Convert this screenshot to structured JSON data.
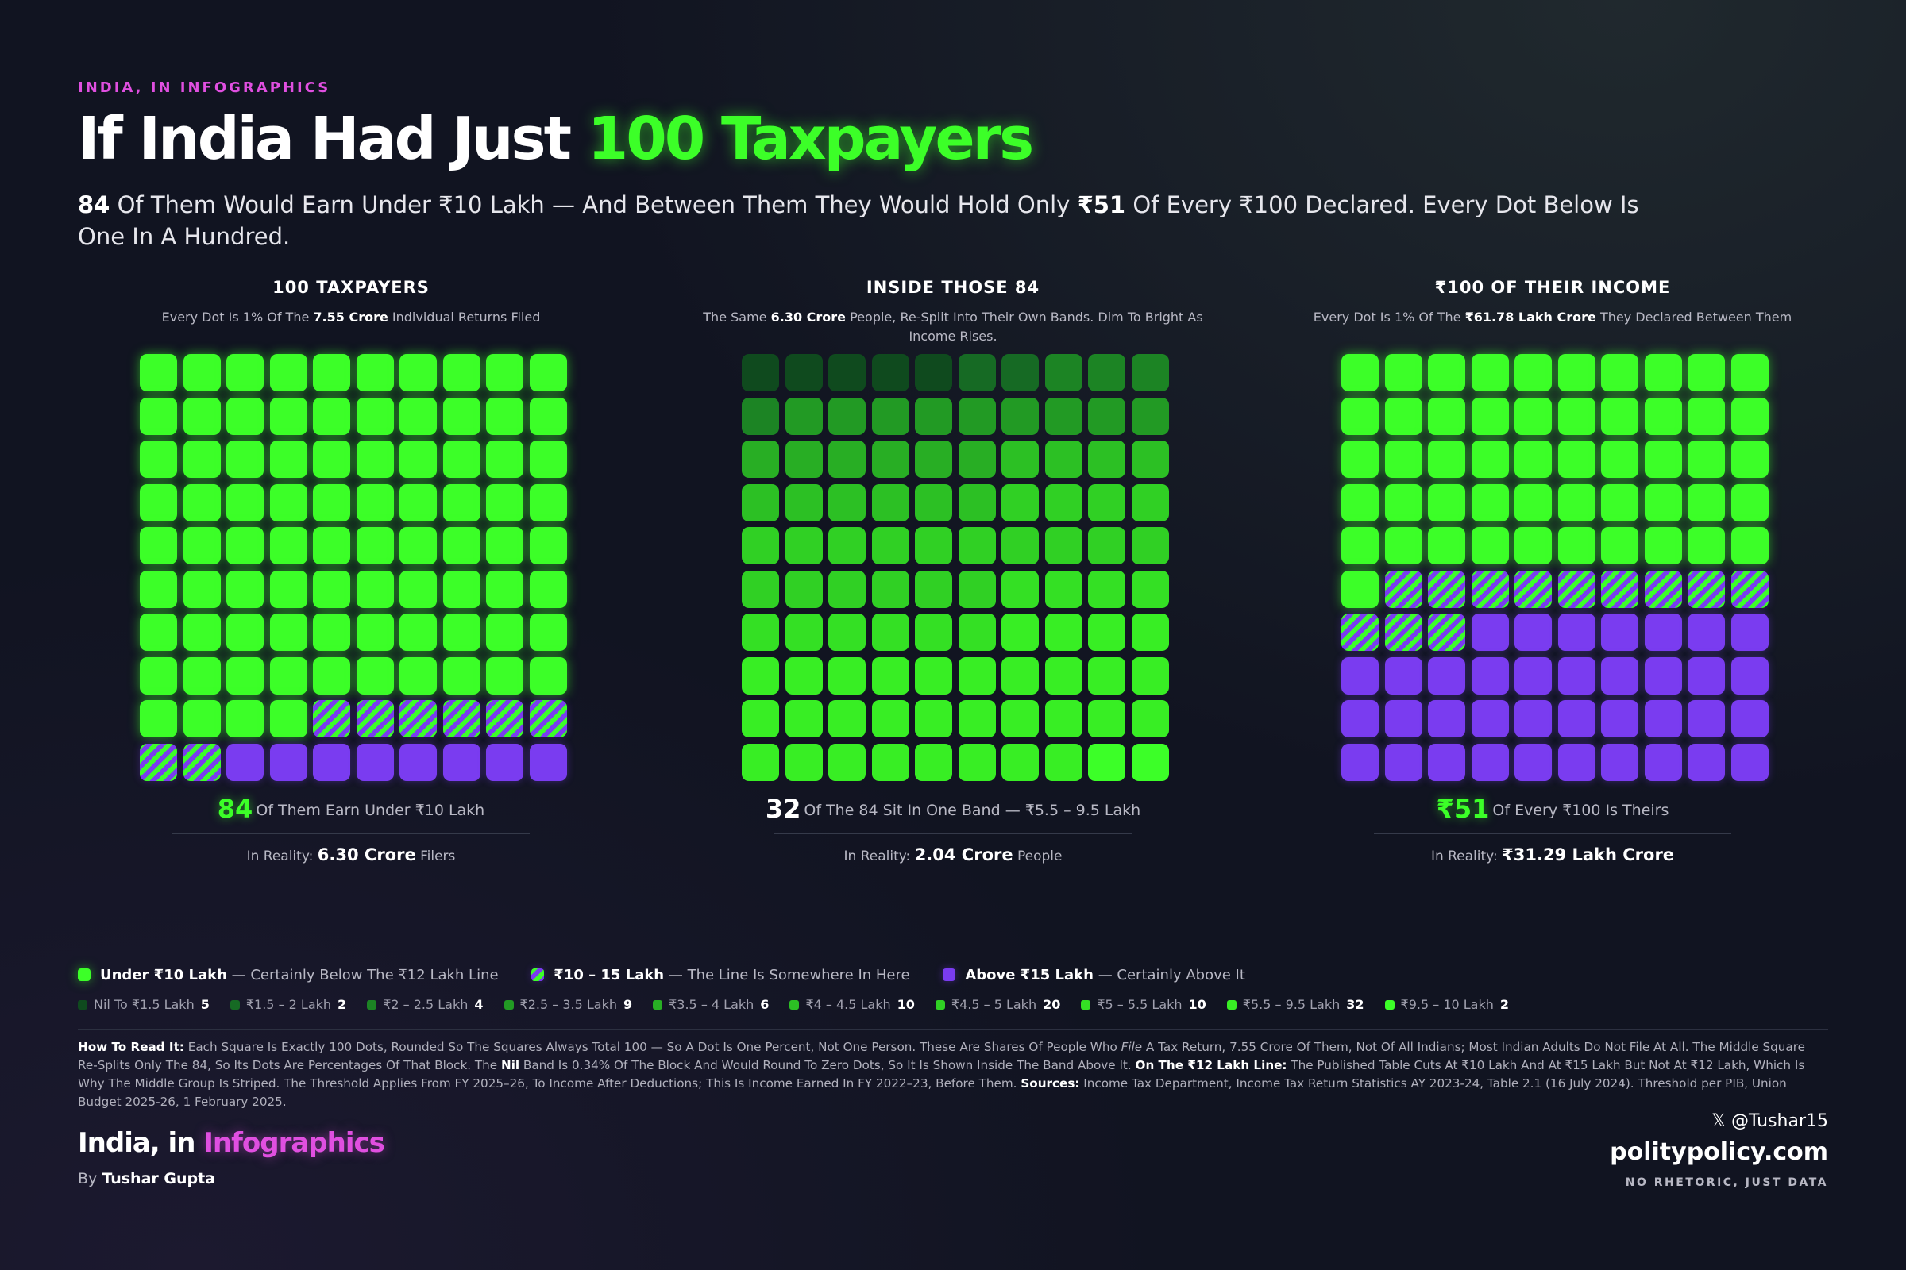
{
  "kicker": "INDIA, IN INFOGRAPHICS",
  "title": {
    "part1": "If India Had Just ",
    "highlight": "100 Taxpayers"
  },
  "subtitle": {
    "num1": "84",
    "t1": " Of Them Would Earn Under ₹10 Lakh — And Between Them They Would Hold Only ",
    "num2": "₹51",
    "t2": " Of Every ₹100 Declared. Every Dot Below Is One In A Hundred."
  },
  "colors": {
    "green": "#3cff28",
    "purple": "#7a3cf0",
    "magenta": "#e04fe0",
    "background": "#111421"
  },
  "panels": [
    {
      "heading": "100 TAXPAYERS",
      "sub_pre": "Every Dot Is 1% Of The ",
      "sub_bold": "7.55 Crore",
      "sub_post": " Individual Returns Filed",
      "stat_num": "84",
      "stat_text": "Of Them Earn Under ₹10 Lakh",
      "reality_pre": "In Reality: ",
      "reality_bold": "6.30 Crore",
      "reality_post": " Filers"
    },
    {
      "heading": "INSIDE THOSE 84",
      "sub_pre": "The Same ",
      "sub_bold": "6.30 Crore",
      "sub_post": " People, Re-Split Into Their Own Bands. Dim To Bright As Income Rises.",
      "stat_num": "32",
      "stat_text": "Of The 84 Sit In One Band — ₹5.5 – 9.5 Lakh",
      "reality_pre": "In Reality: ",
      "reality_bold": "2.04 Crore",
      "reality_post": " People"
    },
    {
      "heading": "₹100 OF THEIR INCOME",
      "sub_pre": "Every Dot Is 1% Of The ",
      "sub_bold": "₹61.78 Lakh Crore",
      "sub_post": " They Declared Between Them",
      "stat_num": "₹51",
      "stat_text": "Of Every ₹100 Is Theirs",
      "reality_pre": "In Reality: ",
      "reality_bold": "₹31.29 Lakh Crore",
      "reality_post": ""
    }
  ],
  "chart_data": [
    {
      "type": "waffle",
      "title": "100 TAXPAYERS",
      "categories": [
        "Under ₹10 Lakh",
        "₹10 – 15 Lakh",
        "Above ₹15 Lakh"
      ],
      "values": [
        84,
        8,
        8
      ]
    },
    {
      "type": "waffle",
      "title": "INSIDE THOSE 84",
      "categories": [
        "Nil To ₹1.5 Lakh",
        "₹1.5 – 2 Lakh",
        "₹2 – 2.5 Lakh",
        "₹2.5 – 3.5 Lakh",
        "₹3.5 – 4 Lakh",
        "₹4 – 4.5 Lakh",
        "₹4.5 – 5 Lakh",
        "₹5 – 5.5 Lakh",
        "₹5.5 – 9.5 Lakh",
        "₹9.5 – 10 Lakh"
      ],
      "values": [
        5,
        2,
        4,
        9,
        6,
        10,
        20,
        10,
        32,
        2
      ],
      "colors": [
        "#0f4a1e",
        "#166a24",
        "#1c8424",
        "#229a24",
        "#28ae24",
        "#2cc024",
        "#30d024",
        "#34e024",
        "#38ee24",
        "#3cff28"
      ]
    },
    {
      "type": "waffle",
      "title": "₹100 OF THEIR INCOME",
      "categories": [
        "Under ₹10 Lakh",
        "₹10 – 15 Lakh",
        "Above ₹15 Lakh"
      ],
      "values": [
        51,
        12,
        37
      ]
    }
  ],
  "legend": {
    "main": [
      {
        "label": "Under ₹10 Lakh",
        "desc": " — Certainly Below The ₹12 Lakh Line",
        "style": "green"
      },
      {
        "label": "₹10 – 15 Lakh",
        "desc": " — The Line Is Somewhere In Here",
        "style": "striped"
      },
      {
        "label": "Above ₹15 Lakh",
        "desc": " — Certainly Above It",
        "style": "purple"
      }
    ],
    "bands": [
      {
        "label": "Nil To ₹1.5 Lakh",
        "value": "5",
        "color": "#0f4a1e"
      },
      {
        "label": "₹1.5 – 2 Lakh",
        "value": "2",
        "color": "#166a24"
      },
      {
        "label": "₹2 – 2.5 Lakh",
        "value": "4",
        "color": "#1c8424"
      },
      {
        "label": "₹2.5 – 3.5 Lakh",
        "value": "9",
        "color": "#229a24"
      },
      {
        "label": "₹3.5 – 4 Lakh",
        "value": "6",
        "color": "#28ae24"
      },
      {
        "label": "₹4 – 4.5 Lakh",
        "value": "10",
        "color": "#2cc024"
      },
      {
        "label": "₹4.5 – 5 Lakh",
        "value": "20",
        "color": "#30d024"
      },
      {
        "label": "₹5 – 5.5 Lakh",
        "value": "10",
        "color": "#34e024"
      },
      {
        "label": "₹5.5 – 9.5 Lakh",
        "value": "32",
        "color": "#38ee24"
      },
      {
        "label": "₹9.5 – 10 Lakh",
        "value": "2",
        "color": "#3cff28"
      }
    ]
  },
  "howto": {
    "h1": "How To Read It:",
    "t1": " Each Square Is Exactly 100 Dots, Rounded So The Squares Always Total 100 — So A Dot Is One Percent, Not One Person. These Are Shares Of People Who ",
    "em": "File",
    "t2": " A Tax Return, 7.55 Crore Of Them, Not Of All Indians; Most Indian Adults Do Not File At All. The Middle Square Re-Splits Only The 84, So Its Dots Are Percentages Of That Block. The ",
    "nil": "Nil",
    "t3": " Band Is 0.34% Of The Block And Would Round To Zero Dots, So It Is Shown Inside The Band Above It. ",
    "h2": "On The ₹12 Lakh Line:",
    "t4": " The Published Table Cuts At ₹10 Lakh And At ₹15 Lakh But Not At ₹12 Lakh, Which Is Why The Middle Group Is Striped. The Threshold Applies From FY 2025–26, To Income After Deductions; This Is Income Earned In FY 2022–23, Before Them. ",
    "h3": "Sources:",
    "t5": " Income Tax Department, Income Tax Return Statistics AY 2023-24, Table 2.1 (16 July 2024). Threshold per PIB, Union Budget 2025-26, 1 February 2025."
  },
  "footer": {
    "brand_pre": "India, in ",
    "brand_hl": "Infographics",
    "by_pre": "By ",
    "by_name": "Tushar Gupta",
    "x_icon": "𝕏",
    "handle": "@Tushar15",
    "site": "politypolicy.com",
    "tagline": "NO RHETORIC, JUST DATA"
  }
}
